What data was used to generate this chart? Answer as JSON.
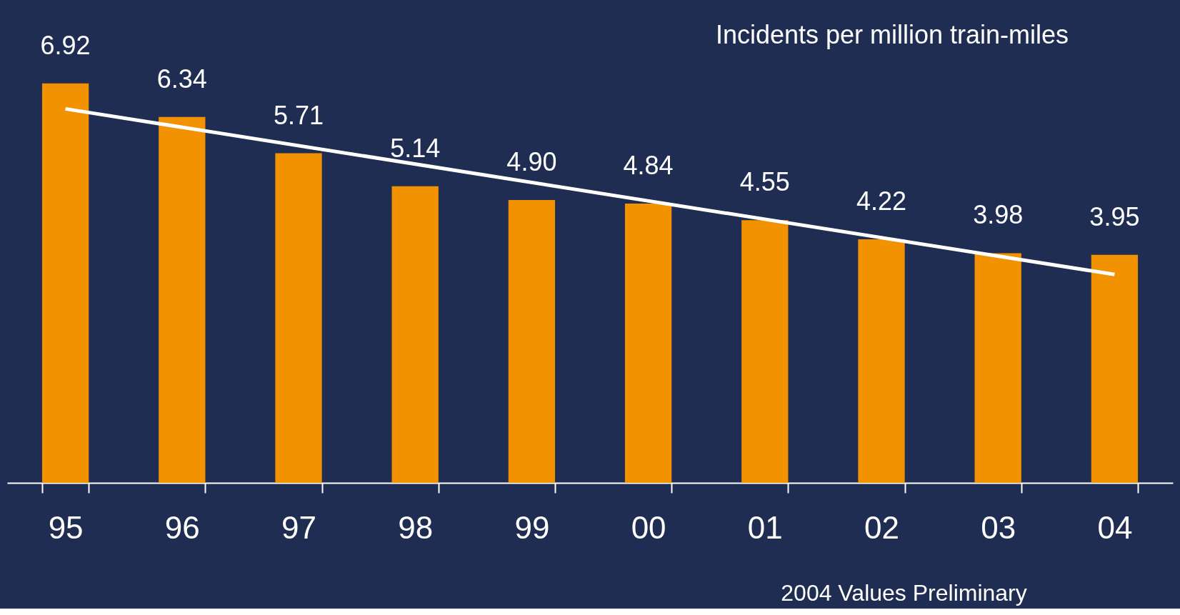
{
  "chart_data": {
    "type": "bar",
    "categories": [
      "95",
      "96",
      "97",
      "98",
      "99",
      "00",
      "01",
      "02",
      "03",
      "04"
    ],
    "series": [
      {
        "color": "#f39200",
        "values": [
          6.92,
          6.34,
          5.71,
          5.14,
          4.9,
          4.84,
          4.55,
          4.22,
          3.98,
          3.95
        ],
        "value_labels": [
          "6.92",
          "6.34",
          "5.71",
          "5.14",
          "4.90",
          "4.84",
          "4.55",
          "4.22",
          "3.98",
          "3.95"
        ]
      },
      {
        "type": "line",
        "color": "#ffffff",
        "x": [
          "95",
          "04"
        ],
        "values": [
          6.48,
          3.61
        ]
      }
    ],
    "grid": false,
    "annotations": [
      "Incidents per million train-miles",
      "2004 Values Preliminary"
    ]
  }
}
